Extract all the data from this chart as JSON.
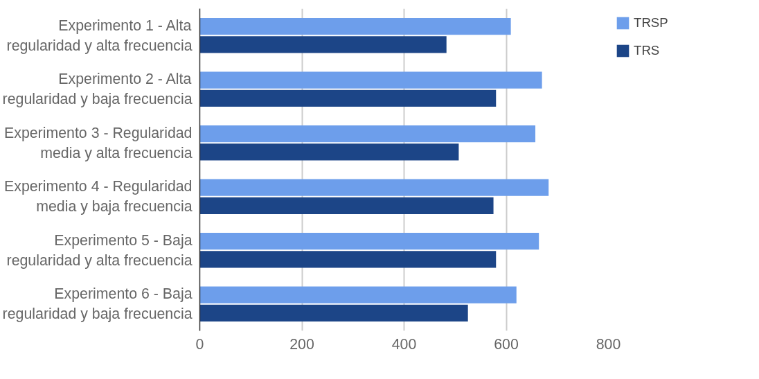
{
  "chart_data": {
    "type": "bar",
    "orientation": "horizontal",
    "categories": [
      "Experimento 1 - Alta regularidad y alta frecuencia",
      "Experimento 2 - Alta regularidad y baja frecuencia",
      "Experimento 3 - Regularidad media y alta frecuencia",
      "Experimento 4 - Regularidad media y baja frecuencia",
      "Experimento 5 - Baja regularidad y alta frecuencia",
      "Experimento 6 - Baja regularidad y baja frecuencia"
    ],
    "series": [
      {
        "name": "TRSP",
        "color": "#6d9eeb",
        "values": [
          609,
          670,
          657,
          683,
          664,
          620
        ]
      },
      {
        "name": "TRS",
        "color": "#1c4587",
        "values": [
          483,
          580,
          507,
          575,
          580,
          525
        ]
      }
    ],
    "xlim": [
      0,
      800
    ],
    "xticks": [
      0,
      200,
      400,
      600,
      800
    ],
    "grid": "x",
    "legend": "top right"
  }
}
